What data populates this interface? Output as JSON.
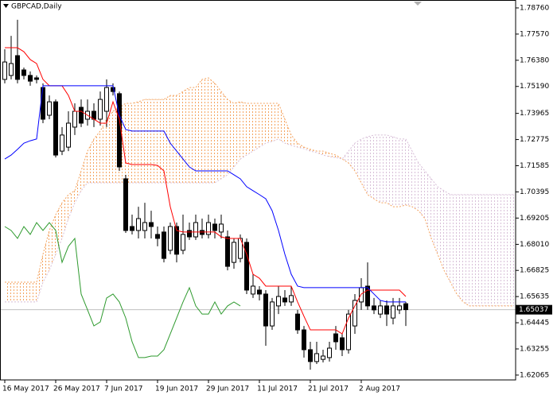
{
  "chart_data": {
    "type": "candlestick",
    "title": "GBPCAD,Daily",
    "categories": [
      "16 May 2017",
      null,
      null,
      null,
      null,
      null,
      null,
      null,
      "26 May 2017",
      null,
      null,
      null,
      null,
      null,
      null,
      null,
      "7 Jun 2017",
      null,
      null,
      null,
      null,
      null,
      null,
      null,
      "19 Jun 2017",
      null,
      null,
      null,
      null,
      null,
      null,
      null,
      "29 Jun 2017",
      null,
      null,
      null,
      null,
      null,
      null,
      null,
      "11 Jul 2017",
      null,
      null,
      null,
      null,
      null,
      null,
      null,
      "21 Jul 2017",
      null,
      null,
      null,
      null,
      null,
      null,
      null,
      "2 Aug 2017",
      null,
      null,
      null,
      null,
      null,
      null,
      null,
      null,
      null,
      null,
      null,
      null,
      null,
      null,
      null,
      null,
      null,
      null,
      null,
      null,
      null,
      null,
      null,
      null
    ],
    "open": [
      1.7551,
      1.7569,
      1.7659,
      1.7594,
      1.7569,
      1.7558,
      1.7514,
      1.7388,
      1.7449,
      1.7225,
      1.7243,
      1.7334,
      1.7424,
      1.737,
      1.7406,
      1.737,
      1.7406,
      1.7514,
      1.7486,
      1.7099,
      1.6882,
      1.6864,
      1.6864,
      1.69,
      1.6846,
      1.6857,
      1.6774,
      1.6882,
      1.6774,
      1.6864,
      1.6835,
      1.6864,
      1.6846,
      1.6893,
      1.6857,
      1.6835,
      1.6719,
      1.6737,
      1.681,
      1.6575,
      1.6593,
      1.6575,
      1.643,
      1.6521,
      1.6557,
      1.6539,
      1.6484,
      1.6412,
      1.6322,
      1.6268,
      1.6278,
      1.6286,
      1.6394,
      1.6376,
      1.6322,
      1.643,
      1.6539,
      1.6611,
      1.6521,
      1.6484,
      1.6521,
      1.6466,
      1.6503,
      1.6531,
      null,
      null,
      null,
      null,
      null,
      null,
      null,
      null,
      null,
      null,
      null,
      null,
      null,
      null,
      null,
      null,
      null
    ],
    "high": [
      1.7688,
      1.7749,
      1.7822,
      1.7605,
      1.7587,
      1.7569,
      1.7533,
      1.7478,
      1.746,
      1.7334,
      1.7406,
      1.7442,
      1.746,
      1.746,
      1.7442,
      1.7496,
      1.7551,
      1.7533,
      1.7496,
      1.7117,
      1.6936,
      1.6972,
      1.699,
      1.6954,
      1.6882,
      1.6882,
      1.69,
      1.69,
      1.6936,
      1.69,
      1.6936,
      1.6918,
      1.6936,
      1.6918,
      1.6936,
      1.6864,
      1.6828,
      1.6846,
      1.6828,
      1.6665,
      1.6611,
      1.6593,
      1.6557,
      1.6611,
      1.6593,
      1.6611,
      1.6503,
      1.643,
      1.6358,
      1.6358,
      1.6322,
      1.6358,
      1.643,
      1.6394,
      1.6503,
      1.6575,
      1.6647,
      1.6719,
      1.6557,
      1.6546,
      1.6546,
      1.6557,
      1.6557,
      1.6539,
      null,
      null,
      null,
      null,
      null,
      null,
      null,
      null,
      null,
      null,
      null,
      null,
      null,
      null,
      null,
      null,
      null
    ],
    "low": [
      1.7533,
      1.7551,
      1.7533,
      1.7551,
      1.7522,
      1.7533,
      1.7352,
      1.737,
      1.7196,
      1.7207,
      1.7225,
      1.7298,
      1.7334,
      1.7341,
      1.7334,
      1.7341,
      1.7334,
      1.7478,
      1.7135,
      1.6853,
      1.6846,
      1.6828,
      1.6828,
      1.6828,
      1.6792,
      1.6719,
      1.6756,
      1.6719,
      1.6756,
      1.6821,
      1.6821,
      1.6828,
      1.6828,
      1.6828,
      1.6828,
      1.6683,
      1.669,
      1.6719,
      1.6575,
      1.6557,
      1.6546,
      1.634,
      1.6412,
      1.6484,
      1.6521,
      1.6521,
      1.6394,
      1.6286,
      1.6231,
      1.6257,
      1.6264,
      1.6268,
      1.6322,
      1.6293,
      1.6304,
      1.6394,
      1.6503,
      1.6503,
      1.6484,
      1.6466,
      1.643,
      1.6437,
      1.6484,
      1.643,
      null,
      null,
      null,
      null,
      null,
      null,
      null,
      null,
      null,
      null,
      null,
      null,
      null,
      null,
      null,
      null,
      null
    ],
    "close": [
      1.763,
      1.7623,
      1.7551,
      1.7569,
      1.7543,
      1.7551,
      1.737,
      1.7449,
      1.7207,
      1.7298,
      1.7352,
      1.7406,
      1.7352,
      1.7406,
      1.737,
      1.746,
      1.7514,
      1.7496,
      1.7153,
      1.6864,
      1.6864,
      1.6918,
      1.69,
      1.6882,
      1.6828,
      1.6737,
      1.6882,
      1.6756,
      1.6846,
      1.6835,
      1.69,
      1.6846,
      1.69,
      1.6864,
      1.6893,
      1.6701,
      1.681,
      1.6828,
      1.6593,
      1.6611,
      1.6575,
      1.643,
      1.6539,
      1.6564,
      1.6539,
      1.6568,
      1.6412,
      1.6322,
      1.6268,
      1.6304,
      1.6293,
      1.6329,
      1.6358,
      1.6322,
      1.6484,
      1.6546,
      1.6604,
      1.6521,
      1.6503,
      1.6521,
      1.6484,
      1.6521,
      1.6521,
      1.6504,
      null,
      null,
      null,
      null,
      null,
      null,
      null,
      null,
      null,
      null,
      null,
      null,
      null,
      null,
      null,
      null,
      null
    ],
    "bull_color": "#ffffff",
    "bear_color": "#000000",
    "lines": [
      {
        "color": "#ff0000",
        "values": [
          1.7695,
          1.7695,
          1.7695,
          1.7677,
          1.7641,
          1.7623,
          1.7551,
          1.7522,
          1.7522,
          1.7522,
          1.7478,
          1.7406,
          1.7406,
          1.7388,
          1.737,
          1.7352,
          1.7352,
          1.7449,
          1.737,
          1.7171,
          1.7164,
          1.7164,
          1.7164,
          1.7164,
          1.716,
          1.7135,
          1.6972,
          1.6864,
          1.6857,
          1.6857,
          1.6857,
          1.6857,
          1.6857,
          1.6857,
          1.6835,
          1.6828,
          1.6828,
          1.6828,
          1.6756,
          1.6665,
          1.6647,
          1.6611,
          1.6611,
          1.6611,
          1.6611,
          1.6611,
          1.6539,
          1.6474,
          1.6412,
          1.6412,
          1.6412,
          1.6412,
          1.6412,
          1.6394,
          1.6466,
          1.6521,
          1.6575,
          1.6593,
          1.6593,
          1.6593,
          1.6593,
          1.6593,
          1.6593,
          1.6564,
          null,
          null,
          null,
          null,
          null,
          null,
          null,
          null,
          null,
          null,
          null,
          null,
          null,
          null,
          null,
          null,
          null
        ]
      },
      {
        "color": "#0000ff",
        "values": [
          1.7189,
          1.7207,
          1.7233,
          1.7261,
          1.7272,
          1.728,
          1.7522,
          1.7522,
          1.7522,
          1.7522,
          1.7522,
          1.7522,
          1.7522,
          1.7522,
          1.7522,
          1.7522,
          1.7522,
          1.7522,
          1.7388,
          1.7323,
          1.7316,
          1.7316,
          1.7316,
          1.7316,
          1.7316,
          1.7316,
          1.7261,
          1.7225,
          1.7189,
          1.7153,
          1.7135,
          1.7135,
          1.7135,
          1.7135,
          1.7135,
          1.7135,
          1.7117,
          1.7099,
          1.7063,
          1.7045,
          1.7027,
          1.7008,
          1.6954,
          1.6864,
          1.6756,
          1.6665,
          1.6611,
          1.6604,
          1.6604,
          1.6604,
          1.6604,
          1.6604,
          1.6604,
          1.6604,
          1.6604,
          1.6604,
          1.6604,
          1.6604,
          1.6575,
          1.6546,
          1.6539,
          1.6539,
          1.6539,
          1.6539,
          null,
          null,
          null,
          null,
          null,
          null,
          null,
          null,
          null,
          null,
          null,
          null,
          null,
          null,
          null,
          null,
          null
        ]
      },
      {
        "color": "#2e9a2e",
        "values": [
          1.6882,
          1.6864,
          1.6828,
          1.6882,
          1.6846,
          1.69,
          1.6864,
          1.69,
          1.6864,
          1.6719,
          1.6792,
          1.6828,
          1.6575,
          1.6503,
          1.643,
          1.6448,
          1.6557,
          1.6575,
          1.6539,
          1.6466,
          1.6358,
          1.6286,
          1.6286,
          1.6293,
          1.6293,
          1.6322,
          1.6394,
          1.6466,
          1.6539,
          1.6604,
          1.6521,
          1.6484,
          1.6484,
          1.6539,
          1.6484,
          1.6521,
          1.6539,
          1.6521,
          null,
          null,
          null,
          null,
          null,
          null,
          null,
          null,
          null,
          null,
          null,
          null,
          null,
          null,
          null,
          null,
          null,
          null,
          null,
          null,
          null,
          null,
          null,
          null,
          null,
          null,
          null,
          null,
          null,
          null,
          null,
          null,
          null,
          null,
          null,
          null,
          null,
          null,
          null,
          null,
          null,
          null,
          null
        ]
      }
    ],
    "cloud": [
      {
        "color": "#f4a460",
        "values": [
          1.6629,
          1.6629,
          1.6629,
          1.6629,
          1.6629,
          1.6629,
          1.6756,
          1.6864,
          1.6936,
          1.699,
          1.7027,
          1.7045,
          1.7135,
          1.7225,
          1.728,
          1.7316,
          1.737,
          1.7406,
          1.7424,
          1.7442,
          1.7442,
          1.7449,
          1.746,
          1.746,
          1.746,
          1.746,
          1.7478,
          1.7478,
          1.7496,
          1.7514,
          1.7514,
          1.7551,
          1.7558,
          1.7533,
          1.7496,
          1.746,
          1.7442,
          1.7449,
          1.7442,
          1.7442,
          1.7442,
          1.7442,
          1.7442,
          1.7442,
          1.737,
          1.7298,
          1.7261,
          1.7243,
          1.7233,
          1.7225,
          1.7225,
          1.7215,
          1.7207,
          1.7189,
          1.7171,
          1.7135,
          1.7081,
          1.7027,
          1.7008,
          1.699,
          1.699,
          1.6972,
          1.6972,
          1.698,
          1.6972,
          1.6954,
          1.6918,
          1.6828,
          1.6756,
          1.6683,
          1.6629,
          1.6575,
          1.6539,
          1.6521,
          1.6521,
          1.6521,
          1.6521,
          1.6521,
          1.6521,
          1.6521,
          1.6521
        ]
      },
      {
        "color": "#d8bfd8",
        "values": [
          1.6539,
          1.6539,
          1.6539,
          1.6539,
          1.6539,
          1.6539,
          1.6629,
          1.6683,
          1.6756,
          1.6828,
          1.6918,
          1.699,
          1.7045,
          1.7081,
          1.7081,
          1.7081,
          1.7081,
          1.7081,
          1.7081,
          1.7081,
          1.7081,
          1.7081,
          1.7081,
          1.7081,
          1.7081,
          1.7081,
          1.7081,
          1.7081,
          1.7081,
          1.7081,
          1.7081,
          1.7081,
          1.7081,
          1.7081,
          1.7099,
          1.7117,
          1.7153,
          1.7189,
          1.7207,
          1.7225,
          1.7243,
          1.7261,
          1.7269,
          1.728,
          1.7261,
          1.7251,
          1.7243,
          1.7236,
          1.7225,
          1.7218,
          1.7207,
          1.72,
          1.7196,
          1.7189,
          1.7225,
          1.7261,
          1.728,
          1.729,
          1.7298,
          1.7298,
          1.7298,
          1.729,
          1.728,
          1.728,
          1.7225,
          1.7171,
          1.7135,
          1.7099,
          1.7063,
          1.7045,
          1.7027,
          1.7027,
          1.7027,
          1.7027,
          1.7027,
          1.7027,
          1.7027,
          1.7027,
          1.7027,
          1.7027,
          1.7027
        ]
      }
    ],
    "ylim": [
      1.61845,
      1.7912
    ],
    "yticks": [
      {
        "value": 1.7876,
        "label": "1.78760"
      },
      {
        "value": 1.7757,
        "label": "1.77570"
      },
      {
        "value": 1.7638,
        "label": "1.76380"
      },
      {
        "value": 1.7519,
        "label": "1.75190"
      },
      1.73965,
      1.72775,
      1.71585,
      1.70395,
      1.69205,
      {
        "value": 1.6801,
        "label": "1.68010"
      },
      1.66825,
      1.65635,
      1.64445,
      1.63255,
      1.62065
    ],
    "last_price": {
      "value": 1.65037,
      "label": "1.65037"
    }
  }
}
